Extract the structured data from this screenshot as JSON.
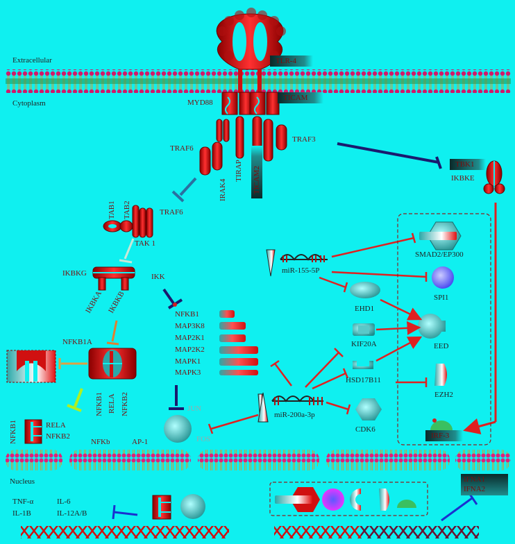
{
  "regions": {
    "extracellular": "Extracellular",
    "cytoplasm": "Cytoplasm",
    "nucleus": "Nucleus"
  },
  "receptors": {
    "tlr4": "TLR-4",
    "ticam": "TICAM",
    "myd88": "MYD88",
    "tirap": "TIRAP",
    "ticam2": "TICAM2",
    "traf3": "TRAF3",
    "traf6_a": "TRAF6",
    "irak4": "IRAK4",
    "tbk1": "TBK1",
    "ikbke": "IKBKE"
  },
  "kinase_cascade": {
    "tab1": "TAB1",
    "tab2": "TAB2",
    "traf6_b": "TRAF6",
    "tak1": "TAK 1",
    "ikbkg": "IKBKG",
    "ikbka": "IKBKA",
    "ikbkb": "IKBKB",
    "ikk": "IKK",
    "nfkb1a": "NFKB1A",
    "nfkb1_v": "NFKB1",
    "rela_v": "RELA",
    "nfkb2_v": "NFKB2"
  },
  "ikk_targets": [
    "NFKB1",
    "MAP3K8",
    "MAP2K1",
    "MAP2K2",
    "MAPK1",
    "MAPK3"
  ],
  "transcription": {
    "jun": "JUN",
    "fos": "FOS",
    "nfkb1_side": "NFKB1",
    "rela_side": "RELA",
    "nfkb2_side": "NFKB2",
    "nfkb": "NFKb",
    "ap1": "AP-1"
  },
  "mirnas": {
    "mir155": "miR-155-5P",
    "mir200": "miR-200a-3p"
  },
  "targets": {
    "smad2": "SMAD2/EP300",
    "spi1": "SPI1",
    "ehd1": "EHD1",
    "eed": "EED",
    "kif20a": "KIF20A",
    "hsd17b11": "HSD17B11",
    "ezh2": "EZH2",
    "cdk6": "CDK6",
    "irf3": "IRF-3"
  },
  "cytokines": {
    "tnfa": "TNF-α",
    "il6": "IL-6",
    "il1b": "IL-1B",
    "il12": "IL-12A/B",
    "ifna1": "IFNA1",
    "ifna2": "IFNA2"
  },
  "colors": {
    "background": "#0ff0f0",
    "activation": "#e02020",
    "inhibition": "#e02020",
    "tbk1_inhibitor": "#1a1a6e",
    "ifn_inhibitor": "#1a30d0"
  }
}
